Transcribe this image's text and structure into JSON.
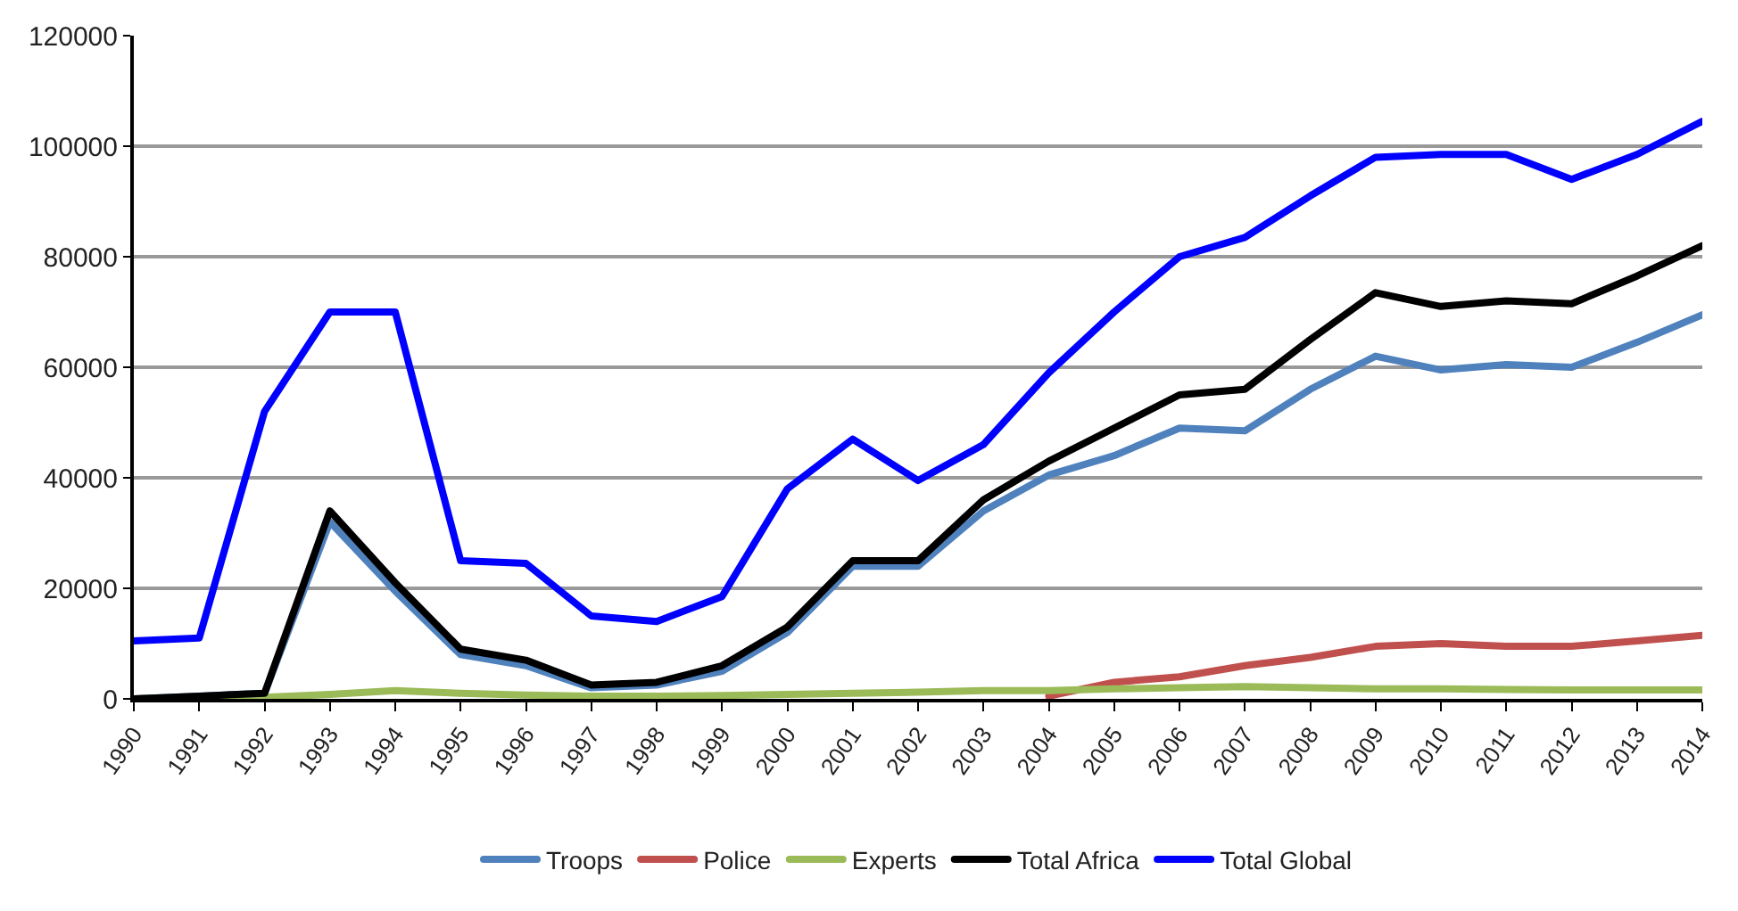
{
  "chart_data": {
    "type": "line",
    "categories": [
      "1990",
      "1991",
      "1992",
      "1993",
      "1994",
      "1995",
      "1996",
      "1997",
      "1998",
      "1999",
      "2000",
      "2001",
      "2002",
      "2003",
      "2004",
      "2005",
      "2006",
      "2007",
      "2008",
      "2009",
      "2010",
      "2011",
      "2012",
      "2013",
      "2014"
    ],
    "ylim": [
      0,
      120000
    ],
    "yticks": [
      0,
      20000,
      40000,
      60000,
      80000,
      100000,
      120000
    ],
    "grid": "y",
    "legend": "bottom",
    "marker": "none",
    "line_style": "solid",
    "series": [
      {
        "name": "Troops",
        "color": "#4f81bd",
        "values": [
          0,
          500,
          1000,
          32000,
          19500,
          8000,
          6000,
          2000,
          2500,
          5000,
          12000,
          24000,
          24000,
          34000,
          40500,
          44000,
          49000,
          48500,
          56000,
          62000,
          59500,
          60500,
          60000,
          64500,
          69500
        ]
      },
      {
        "name": "Police",
        "color": "#c0504d",
        "values": [
          null,
          null,
          null,
          null,
          null,
          null,
          null,
          null,
          null,
          null,
          null,
          null,
          null,
          null,
          500,
          3000,
          4000,
          6000,
          7500,
          9500,
          10000,
          9500,
          9500,
          10500,
          11500
        ]
      },
      {
        "name": "Experts",
        "color": "#9bbb59",
        "values": [
          0,
          200,
          300,
          800,
          1500,
          1000,
          700,
          500,
          500,
          600,
          800,
          1000,
          1200,
          1500,
          1500,
          1800,
          2000,
          2200,
          2000,
          1800,
          1800,
          1700,
          1600,
          1600,
          1600
        ]
      },
      {
        "name": "Total Africa",
        "color": "#000000",
        "values": [
          0,
          500,
          1000,
          34000,
          21000,
          9000,
          7000,
          2500,
          3000,
          6000,
          13000,
          25000,
          25000,
          36000,
          43000,
          49000,
          55000,
          56000,
          65000,
          73500,
          71000,
          72000,
          71500,
          76500,
          82000
        ]
      },
      {
        "name": "Total Global",
        "color": "#0000ff",
        "values": [
          10500,
          11000,
          52000,
          70000,
          70000,
          25000,
          24500,
          15000,
          14000,
          18500,
          38000,
          47000,
          39500,
          46000,
          59000,
          70000,
          80000,
          83500,
          91000,
          98000,
          98500,
          98500,
          94000,
          98500,
          104500
        ]
      }
    ]
  }
}
